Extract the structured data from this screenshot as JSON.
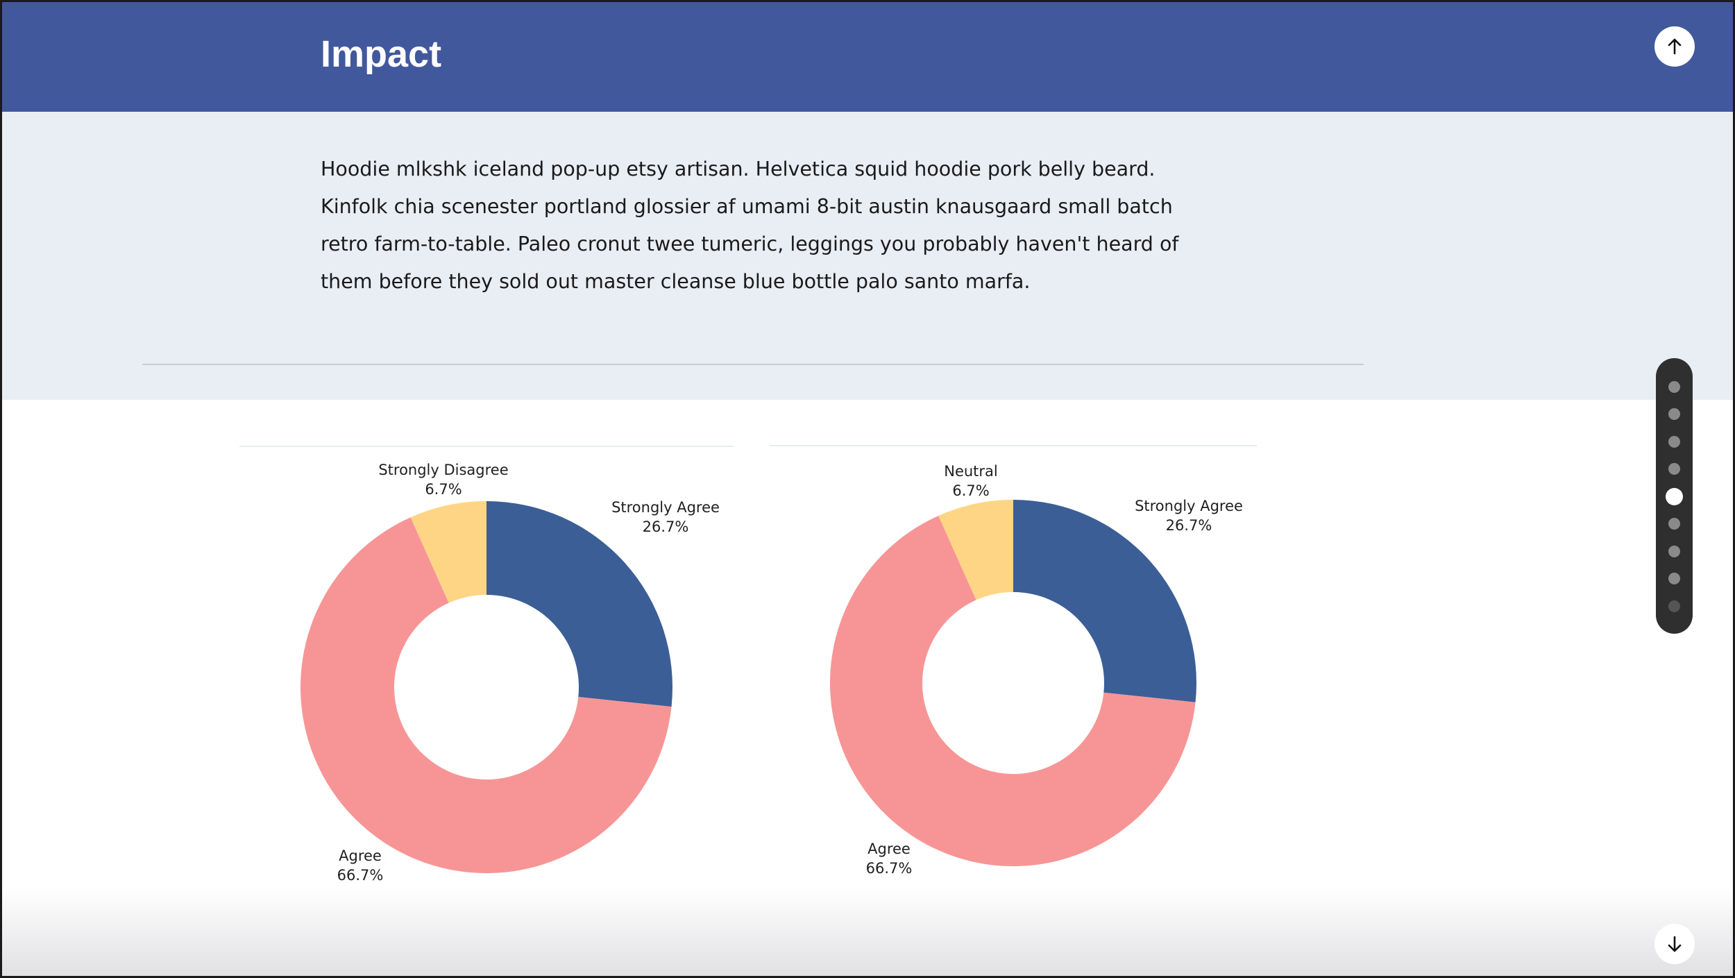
{
  "header": {
    "title": "Impact",
    "scroll_up_icon": "arrow-up-icon",
    "background": "#41589c"
  },
  "intro": {
    "text": "Hoodie mlkshk iceland pop-up etsy artisan. Helvetica squid hoodie pork belly beard. Kinfolk chia scenester portland glossier af umami 8-bit austin knausgaard small batch retro farm-to-table. Paleo cronut twee tumeric, leggings you probably haven't heard of them before they sold out master cleanse blue bottle palo santo marfa.",
    "background": "#e9edf4"
  },
  "page_nav": {
    "dot_count": 9,
    "active_index": 4
  },
  "scroll_down_icon": "arrow-down-icon",
  "colors": {
    "strongly_agree": "#3b5e96",
    "agree": "#f79596",
    "minor": "#fed585"
  },
  "chart_data": [
    {
      "type": "pie",
      "donut": true,
      "title": "",
      "slices": [
        {
          "label": "Strongly Agree",
          "value": 26.7,
          "value_text": "26.7%"
        },
        {
          "label": "Agree",
          "value": 66.7,
          "value_text": "66.7%"
        },
        {
          "label": "Strongly Disagree",
          "value": 6.7,
          "value_text": "6.7%"
        }
      ]
    },
    {
      "type": "pie",
      "donut": true,
      "title": "",
      "slices": [
        {
          "label": "Strongly Agree",
          "value": 26.7,
          "value_text": "26.7%"
        },
        {
          "label": "Agree",
          "value": 66.7,
          "value_text": "66.7%"
        },
        {
          "label": "Neutral",
          "value": 6.7,
          "value_text": "6.7%"
        }
      ]
    }
  ]
}
